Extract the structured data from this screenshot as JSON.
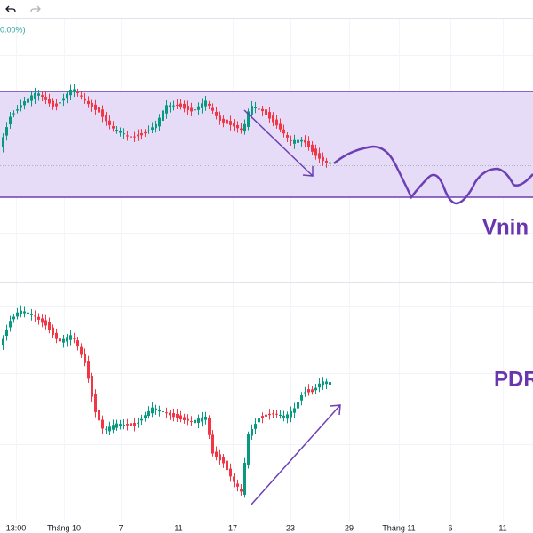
{
  "legend_text": "0.00%)",
  "annotations": {
    "top": "Vnin",
    "bottom": "PDR"
  },
  "time_axis": [
    "13:00",
    "Tháng 10",
    "7",
    "11",
    "17",
    "23",
    "29",
    "Tháng 11",
    "6",
    "11"
  ]
}
